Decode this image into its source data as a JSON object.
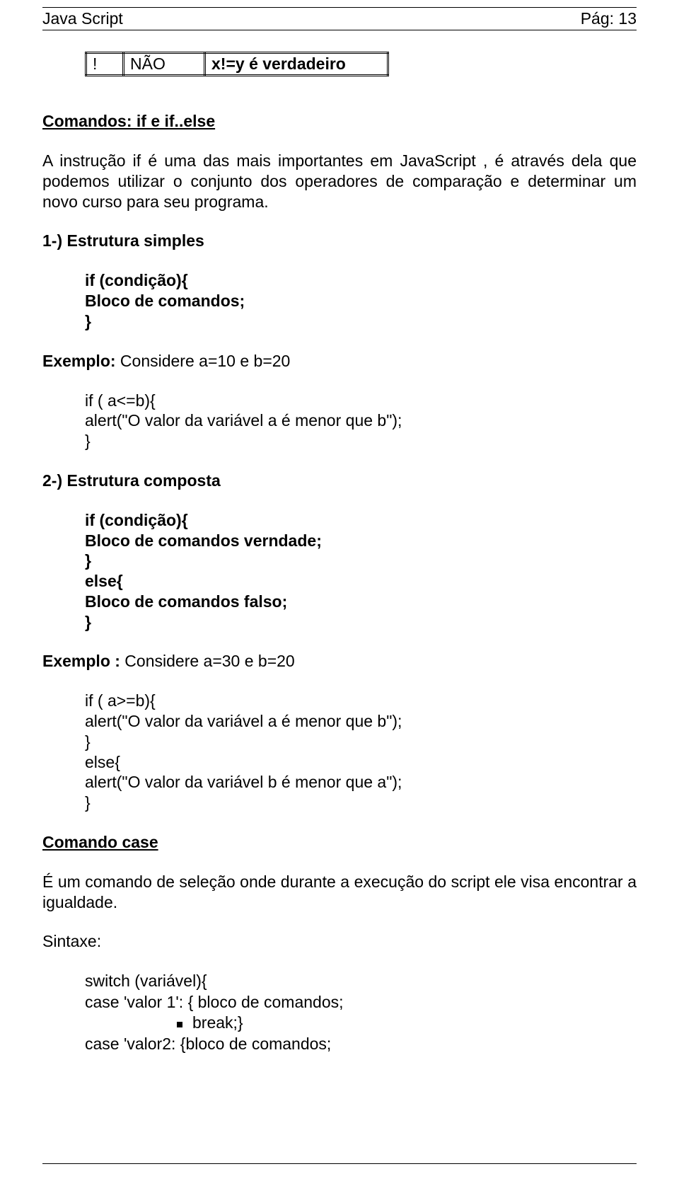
{
  "header": {
    "left": "Java Script",
    "right": "Pág: 13"
  },
  "table": {
    "op": "!",
    "desc": "NÃO",
    "example": "x!=y  é verdadeiro"
  },
  "section1": {
    "title": "Comandos:  if  e  if..else",
    "para": "A instrução if é uma das mais importantes em JavaScript , é através dela que podemos utilizar o conjunto dos operadores de comparação e determinar um novo curso para seu programa.",
    "sub1": "1-) Estrutura simples",
    "code1a": "if (condição){\nBloco de comandos;\n}",
    "ex1_label": "Exemplo:",
    "ex1_rest": "  Considere a=10  e  b=20",
    "code1b": "if ( a<=b){\nalert(\"O valor da variável a é menor que b\");\n}",
    "sub2": "2-) Estrutura composta",
    "code2a": "if (condição){\nBloco de comandos verndade;\n}\nelse{\nBloco de comandos falso;\n}",
    "ex2_label": "Exemplo :",
    "ex2_rest": "  Considere a=30  e  b=20",
    "code2b": "if ( a>=b){\nalert(\"O valor da variável a é menor que b\");\n}\nelse{\nalert(\"O valor da variável b é menor que a\");\n}"
  },
  "section2": {
    "title": "Comando case",
    "para": "É um comando de seleção onde durante a execução do script ele visa encontrar a igualdade.",
    "syntax_label": "Sintaxe:",
    "line1": "switch (variável){",
    "line2": "case 'valor 1': { bloco de comandos;",
    "line3": "break;}",
    "line4": "case 'valor2: {bloco de comandos;"
  }
}
